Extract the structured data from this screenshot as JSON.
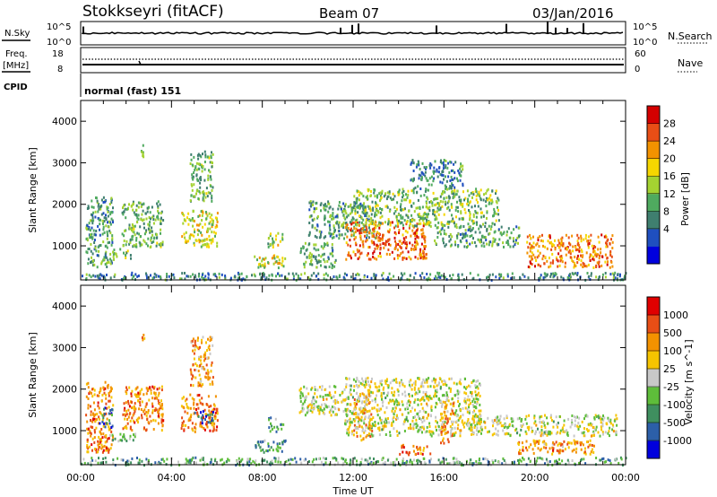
{
  "header": {
    "station": "Stokkseyri (fitACF)",
    "beam": "Beam 07",
    "date": "03/Jan/2016"
  },
  "top_panels": {
    "nsky_label": "N.Sky",
    "nsky_ticks_left": [
      "10^5",
      "10^0"
    ],
    "nsky_ticks_right": [
      "10^5",
      "10^0"
    ],
    "nsearch_label": "N.Search",
    "freq_label_1": "Freq.",
    "freq_label_2": "[MHz]",
    "freq_ticks": [
      "18",
      "8"
    ],
    "nave_ticks": [
      "60",
      "0"
    ],
    "nave_label": "Nave",
    "cpid_label": "CPID",
    "cpid_value": "normal (fast) 151"
  },
  "chart_data": [
    {
      "type": "heatmap",
      "title": "",
      "ylabel": "Slant Range [km]",
      "xlabel": "",
      "xlim": [
        0,
        24
      ],
      "ylim": [
        180,
        4500
      ],
      "y_ticks": [
        "4000",
        "3000",
        "2000",
        "1000"
      ],
      "colorbar_label": "Power [dB]",
      "colorbar_ticks": [
        "28",
        "24",
        "20",
        "16",
        "12",
        "8",
        "4"
      ],
      "colorbar_colors": [
        "#0000dd",
        "#1f4fbf",
        "#3f7f6f",
        "#4faa5f",
        "#a4d231",
        "#f6d600",
        "#f39200",
        "#e84e16",
        "#d40000"
      ],
      "regions": [
        {
          "t0": 0.2,
          "t1": 1.4,
          "r0": 500,
          "r1": 2200,
          "level": 0.35
        },
        {
          "t0": 1.0,
          "t1": 2.2,
          "r0": 700,
          "r1": 950,
          "level": 0.45
        },
        {
          "t0": 1.8,
          "t1": 3.6,
          "r0": 1000,
          "r1": 2100,
          "level": 0.4
        },
        {
          "t0": 2.6,
          "t1": 2.8,
          "r0": 3100,
          "r1": 3450,
          "level": 0.5
        },
        {
          "t0": 4.4,
          "t1": 6.0,
          "r0": 1000,
          "r1": 1900,
          "level": 0.55
        },
        {
          "t0": 4.8,
          "t1": 5.8,
          "r0": 2100,
          "r1": 3300,
          "level": 0.4
        },
        {
          "t0": 7.6,
          "t1": 9.0,
          "r0": 500,
          "r1": 800,
          "level": 0.55
        },
        {
          "t0": 8.2,
          "t1": 8.9,
          "r0": 1000,
          "r1": 1350,
          "level": 0.5
        },
        {
          "t0": 9.6,
          "t1": 11.2,
          "r0": 500,
          "r1": 1100,
          "level": 0.35
        },
        {
          "t0": 10.0,
          "t1": 13.0,
          "r0": 1200,
          "r1": 2100,
          "level": 0.35
        },
        {
          "t0": 11.6,
          "t1": 15.2,
          "r0": 700,
          "r1": 1600,
          "level": 0.8
        },
        {
          "t0": 12.0,
          "t1": 18.4,
          "r0": 1500,
          "r1": 2400,
          "level": 0.45
        },
        {
          "t0": 14.5,
          "t1": 16.8,
          "r0": 2400,
          "r1": 3100,
          "level": 0.3
        },
        {
          "t0": 15.5,
          "t1": 19.3,
          "r0": 1000,
          "r1": 1500,
          "level": 0.35
        },
        {
          "t0": 19.6,
          "t1": 23.4,
          "r0": 500,
          "r1": 1300,
          "level": 0.75
        },
        {
          "t0": 0.0,
          "t1": 24.0,
          "r0": 200,
          "r1": 380,
          "level": 0.3
        }
      ]
    },
    {
      "type": "heatmap",
      "title": "",
      "ylabel": "Slant Range [km]",
      "xlabel": "Time UT",
      "xlim": [
        0,
        24
      ],
      "ylim": [
        180,
        4500
      ],
      "x_ticks": [
        "00:00",
        "04:00",
        "08:00",
        "12:00",
        "16:00",
        "20:00",
        "00:00"
      ],
      "y_ticks": [
        "4000",
        "3000",
        "2000",
        "1000"
      ],
      "colorbar_label": "Velocity [m s^-1]",
      "colorbar_ticks": [
        "1000",
        "500",
        "100",
        "25",
        "-25",
        "-100",
        "-500",
        "-1000"
      ],
      "colorbar_colors": [
        "#0000dd",
        "#2c5fa8",
        "#3f8f5f",
        "#5ebd3a",
        "#c8c8c8",
        "#f6c400",
        "#f39200",
        "#e84e16",
        "#e00000"
      ],
      "regions": [
        {
          "t0": 0.2,
          "t1": 1.4,
          "r0": 500,
          "r1": 2200,
          "level": 0.75
        },
        {
          "t0": 0.8,
          "t1": 1.4,
          "r0": 1100,
          "r1": 1600,
          "level": 0.2
        },
        {
          "t0": 1.0,
          "t1": 2.4,
          "r0": 750,
          "r1": 950,
          "level": 0.35
        },
        {
          "t0": 1.8,
          "t1": 3.6,
          "r0": 1000,
          "r1": 2100,
          "level": 0.75
        },
        {
          "t0": 2.6,
          "t1": 2.8,
          "r0": 3100,
          "r1": 3450,
          "level": 0.7
        },
        {
          "t0": 4.4,
          "t1": 6.0,
          "r0": 1000,
          "r1": 1900,
          "level": 0.75
        },
        {
          "t0": 5.0,
          "t1": 5.8,
          "r0": 1200,
          "r1": 1500,
          "level": 0.15
        },
        {
          "t0": 4.8,
          "t1": 5.8,
          "r0": 2100,
          "r1": 3300,
          "level": 0.7
        },
        {
          "t0": 7.6,
          "t1": 9.0,
          "r0": 500,
          "r1": 800,
          "level": 0.3
        },
        {
          "t0": 8.2,
          "t1": 8.9,
          "r0": 1000,
          "r1": 1350,
          "level": 0.3
        },
        {
          "t0": 9.6,
          "t1": 11.6,
          "r0": 1400,
          "r1": 2100,
          "level": 0.5
        },
        {
          "t0": 11.6,
          "t1": 17.6,
          "r0": 900,
          "r1": 2300,
          "level": 0.5
        },
        {
          "t0": 12.0,
          "t1": 12.8,
          "r0": 800,
          "r1": 2000,
          "level": 0.65
        },
        {
          "t0": 15.8,
          "t1": 16.4,
          "r0": 700,
          "r1": 1800,
          "level": 0.68
        },
        {
          "t0": 17.0,
          "t1": 23.6,
          "r0": 900,
          "r1": 1400,
          "level": 0.5
        },
        {
          "t0": 19.2,
          "t1": 22.6,
          "r0": 450,
          "r1": 800,
          "level": 0.72
        },
        {
          "t0": 14.0,
          "t1": 15.4,
          "r0": 450,
          "r1": 700,
          "level": 0.78
        },
        {
          "t0": 0.0,
          "t1": 24.0,
          "r0": 200,
          "r1": 380,
          "level": 0.35
        }
      ]
    }
  ]
}
